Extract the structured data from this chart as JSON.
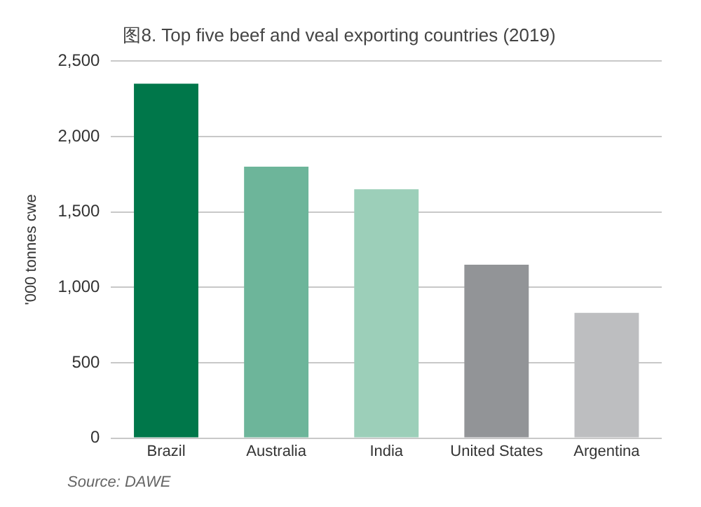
{
  "chart_data": {
    "type": "bar",
    "title": "图8. Top five beef and veal exporting countries (2019)",
    "ylabel": "'000 tonnes cwe",
    "categories": [
      "Brazil",
      "Australia",
      "India",
      "United States",
      "Argentina"
    ],
    "values": [
      2350,
      1800,
      1650,
      1150,
      830
    ],
    "colors": [
      "#00774a",
      "#6db59a",
      "#9ccfb9",
      "#929497",
      "#bdbec0"
    ],
    "ylim": [
      0,
      2500
    ],
    "yticks": [
      0,
      500,
      {
        "value": 1000,
        "label": "1,000"
      },
      {
        "value": 1500,
        "label": "1,500"
      },
      {
        "value": 2000,
        "label": "2,000"
      },
      {
        "value": 2500,
        "label": "2,500"
      }
    ],
    "grid": "y",
    "legend": false,
    "annotations": [
      "Source: DAWE"
    ]
  }
}
